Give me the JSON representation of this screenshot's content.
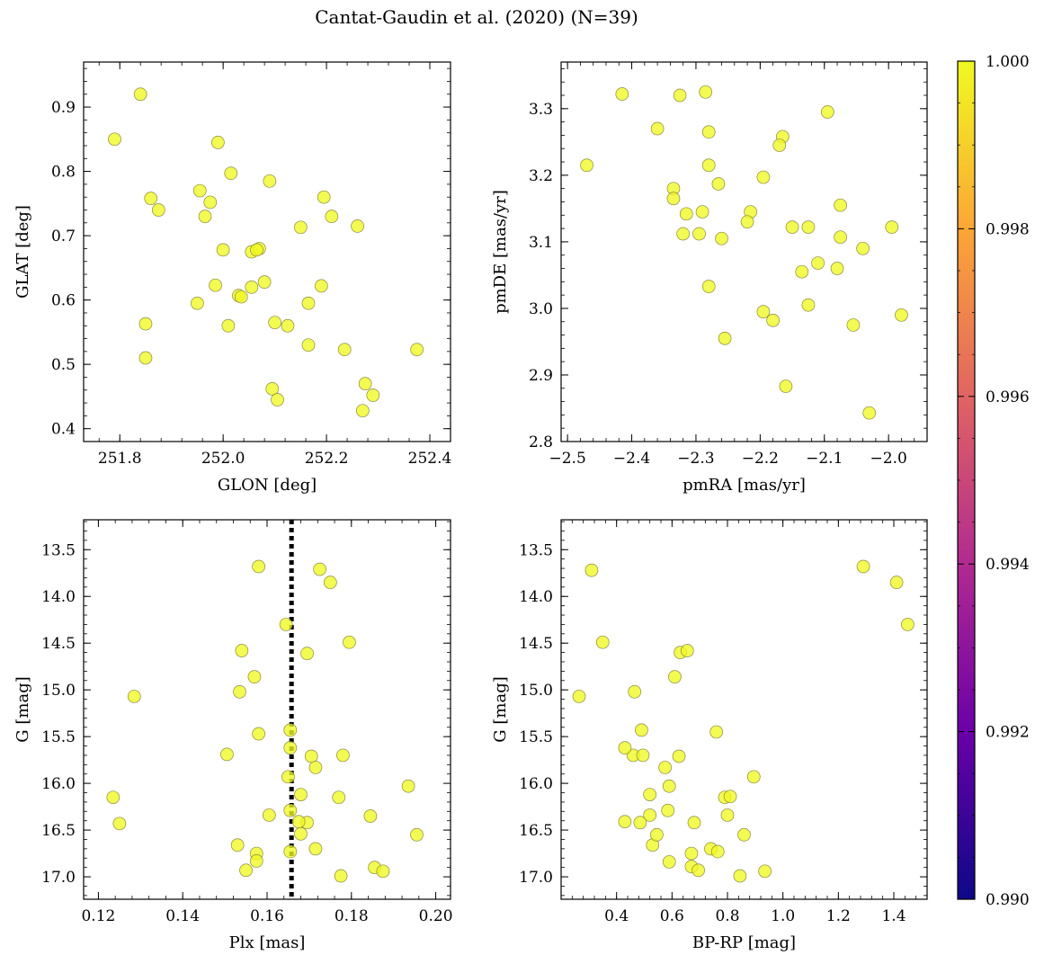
{
  "figure": {
    "title": "Cantat-Gaudin et al. (2020) (N=39)",
    "colorbar": {
      "range": [
        0.99,
        1.0
      ],
      "ticks": [
        "0.990",
        "0.992",
        "0.994",
        "0.996",
        "0.998",
        "1.000"
      ],
      "tick_values": [
        0.99,
        0.992,
        0.994,
        0.996,
        0.998,
        1.0
      ],
      "colormap": "plasma",
      "stops": [
        "#0d0887",
        "#6a00a8",
        "#b12a90",
        "#e16462",
        "#fca636",
        "#f0f921"
      ]
    },
    "marker_color": "#f0f921",
    "marker_edge": "#8a8a40"
  },
  "chart_data": [
    {
      "type": "scatter",
      "xlabel": "GLON [deg]",
      "ylabel": "GLAT [deg]",
      "xlim": [
        251.73,
        252.44
      ],
      "ylim": [
        0.38,
        0.97
      ],
      "xticks": [
        251.8,
        252.0,
        252.2,
        252.4
      ],
      "xtick_labels": [
        "251.8",
        "252.0",
        "252.2",
        "252.4"
      ],
      "yticks": [
        0.4,
        0.5,
        0.6,
        0.7,
        0.8,
        0.9
      ],
      "ytick_labels": [
        "0.4",
        "0.5",
        "0.6",
        "0.7",
        "0.8",
        "0.9"
      ],
      "x": [
        251.84,
        251.79,
        251.86,
        251.875,
        251.955,
        251.965,
        251.975,
        251.99,
        252.015,
        252.09,
        252.195,
        252.21,
        252.26,
        252.15,
        252.0,
        252.055,
        252.07,
        252.065,
        252.08,
        251.985,
        252.055,
        252.03,
        252.035,
        251.95,
        252.01,
        252.1,
        252.125,
        252.165,
        252.19,
        251.85,
        251.85,
        252.165,
        252.235,
        252.375,
        252.095,
        252.105,
        252.275,
        252.29,
        252.27
      ],
      "y": [
        0.92,
        0.85,
        0.758,
        0.74,
        0.77,
        0.73,
        0.752,
        0.845,
        0.797,
        0.785,
        0.76,
        0.73,
        0.715,
        0.713,
        0.678,
        0.675,
        0.68,
        0.678,
        0.628,
        0.623,
        0.62,
        0.607,
        0.605,
        0.595,
        0.56,
        0.565,
        0.56,
        0.595,
        0.622,
        0.563,
        0.51,
        0.53,
        0.523,
        0.523,
        0.462,
        0.445,
        0.47,
        0.452,
        0.428
      ]
    },
    {
      "type": "scatter",
      "xlabel": "pmRA [mas/yr]",
      "ylabel": "pmDE [mas/yr]",
      "xlim": [
        -2.51,
        -1.94
      ],
      "ylim": [
        2.8,
        3.37
      ],
      "xticks": [
        -2.5,
        -2.4,
        -2.3,
        -2.2,
        -2.1,
        -2.0
      ],
      "xtick_labels": [
        "−2.5",
        "−2.4",
        "−2.3",
        "−2.2",
        "−2.1",
        "−2.0"
      ],
      "yticks": [
        2.8,
        2.9,
        3.0,
        3.1,
        3.2,
        3.3
      ],
      "ytick_labels": [
        "2.8",
        "2.9",
        "3.0",
        "3.1",
        "3.2",
        "3.3"
      ],
      "x": [
        -2.415,
        -2.325,
        -2.285,
        -2.47,
        -2.36,
        -2.28,
        -2.335,
        -2.335,
        -2.28,
        -2.265,
        -2.315,
        -2.29,
        -2.095,
        -2.165,
        -2.17,
        -2.195,
        -2.215,
        -2.22,
        -2.15,
        -2.125,
        -2.075,
        -2.075,
        -2.04,
        -1.995,
        -2.32,
        -2.295,
        -2.26,
        -2.135,
        -2.11,
        -2.08,
        -2.125,
        -2.28,
        -2.195,
        -2.18,
        -2.055,
        -1.98,
        -2.255,
        -2.16,
        -2.03
      ],
      "y": [
        3.322,
        3.32,
        3.325,
        3.215,
        3.27,
        3.265,
        3.18,
        3.165,
        3.215,
        3.187,
        3.142,
        3.145,
        3.295,
        3.258,
        3.245,
        3.197,
        3.145,
        3.13,
        3.122,
        3.122,
        3.155,
        3.107,
        3.09,
        3.122,
        3.112,
        3.112,
        3.105,
        3.055,
        3.068,
        3.06,
        3.005,
        3.033,
        2.995,
        2.982,
        2.975,
        2.99,
        2.955,
        2.883,
        2.843
      ]
    },
    {
      "type": "scatter",
      "xlabel": "Plx [mas]",
      "ylabel": "G [mag]",
      "xlim": [
        0.1165,
        0.2035
      ],
      "ylim": [
        17.24,
        13.18
      ],
      "yinverted": true,
      "vline": 0.1658,
      "xticks": [
        0.12,
        0.14,
        0.16,
        0.18,
        0.2
      ],
      "xtick_labels": [
        "0.12",
        "0.14",
        "0.16",
        "0.18",
        "0.20"
      ],
      "yticks": [
        13.5,
        14.0,
        14.5,
        15.0,
        15.5,
        16.0,
        16.5,
        17.0
      ],
      "ytick_labels": [
        "13.5",
        "14.0",
        "14.5",
        "15.0",
        "15.5",
        "16.0",
        "16.5",
        "17.0"
      ],
      "x": [
        0.158,
        0.1725,
        0.175,
        0.1645,
        0.1795,
        0.154,
        0.1695,
        0.157,
        0.1285,
        0.1535,
        0.158,
        0.1655,
        0.1505,
        0.1655,
        0.1705,
        0.178,
        0.1715,
        0.165,
        0.1935,
        0.168,
        0.177,
        0.1235,
        0.1605,
        0.1655,
        0.1845,
        0.1695,
        0.1675,
        0.125,
        0.153,
        0.1715,
        0.168,
        0.1955,
        0.1575,
        0.1655,
        0.1575,
        0.1855,
        0.155,
        0.1875,
        0.1775
      ],
      "y": [
        13.68,
        13.71,
        13.85,
        14.3,
        14.49,
        14.58,
        14.61,
        14.86,
        15.07,
        15.02,
        15.47,
        15.43,
        15.69,
        15.62,
        15.71,
        15.7,
        15.83,
        15.93,
        16.03,
        16.12,
        16.15,
        16.15,
        16.34,
        16.29,
        16.35,
        16.42,
        16.41,
        16.43,
        16.66,
        16.7,
        16.54,
        16.55,
        16.75,
        16.73,
        16.83,
        16.9,
        16.93,
        16.94,
        16.99
      ]
    },
    {
      "type": "scatter",
      "xlabel": "BP-RP [mag]",
      "ylabel": "G [mag]",
      "xlim": [
        0.2,
        1.52
      ],
      "ylim": [
        17.24,
        13.18
      ],
      "yinverted": true,
      "xticks": [
        0.4,
        0.6,
        0.8,
        1.0,
        1.2,
        1.4
      ],
      "xtick_labels": [
        "0.4",
        "0.6",
        "0.8",
        "1.0",
        "1.2",
        "1.4"
      ],
      "yticks": [
        13.5,
        14.0,
        14.5,
        15.0,
        15.5,
        16.0,
        16.5,
        17.0
      ],
      "ytick_labels": [
        "13.5",
        "14.0",
        "14.5",
        "15.0",
        "15.5",
        "16.0",
        "16.5",
        "17.0"
      ],
      "x": [
        0.31,
        1.29,
        1.41,
        1.45,
        0.35,
        0.63,
        0.655,
        0.61,
        0.265,
        0.465,
        0.76,
        0.49,
        0.46,
        0.43,
        0.495,
        0.625,
        0.575,
        0.895,
        0.59,
        0.52,
        0.79,
        0.81,
        0.52,
        0.585,
        0.8,
        0.43,
        0.485,
        0.68,
        0.53,
        0.74,
        0.545,
        0.86,
        0.67,
        0.765,
        0.59,
        0.67,
        0.695,
        0.935,
        0.845
      ],
      "y": [
        13.72,
        13.68,
        13.85,
        14.3,
        14.49,
        14.6,
        14.58,
        14.86,
        15.07,
        15.02,
        15.45,
        15.43,
        15.7,
        15.62,
        15.7,
        15.71,
        15.83,
        15.93,
        16.03,
        16.12,
        16.15,
        16.14,
        16.34,
        16.29,
        16.34,
        16.41,
        16.42,
        16.42,
        16.66,
        16.7,
        16.55,
        16.55,
        16.75,
        16.73,
        16.84,
        16.89,
        16.93,
        16.94,
        16.99
      ]
    }
  ]
}
